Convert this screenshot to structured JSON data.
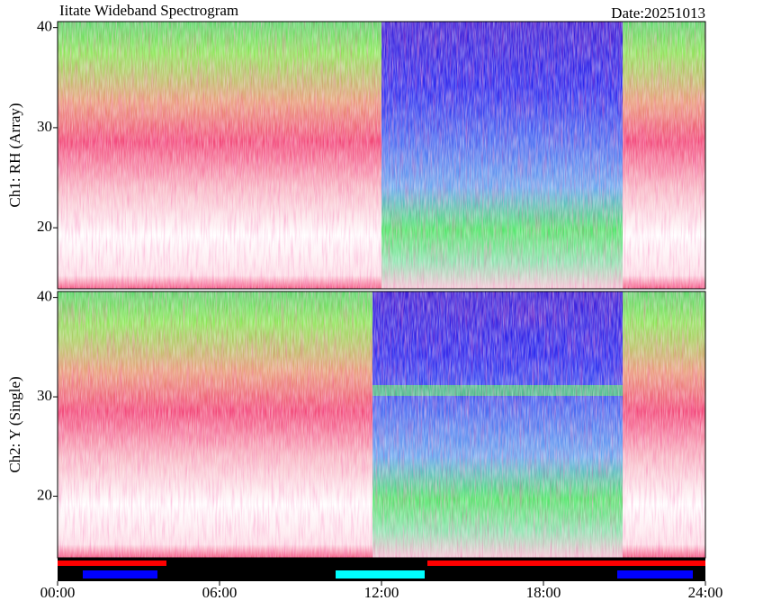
{
  "chart_data": [
    {
      "type": "heatmap",
      "title": "Iitate Wideband Spectrogram",
      "subtitle": "Date:20251013",
      "ylabel": "Ch1: RH (Array)",
      "ylim": [
        13.9,
        40.6
      ],
      "yticks": [
        20,
        30,
        40
      ]
    },
    {
      "type": "heatmap",
      "ylabel": "Ch2: Y (Single)",
      "ylim": [
        13.8,
        40.6
      ],
      "yticks": [
        20,
        30,
        40
      ],
      "xlim": [
        0,
        24
      ],
      "xticks": [
        {
          "value": 0,
          "label": "00:00"
        },
        {
          "value": 6,
          "label": "06:00"
        },
        {
          "value": 12,
          "label": "12:00"
        },
        {
          "value": 18,
          "label": "18:00"
        },
        {
          "value": 24,
          "label": "24:00"
        }
      ]
    }
  ]
}
